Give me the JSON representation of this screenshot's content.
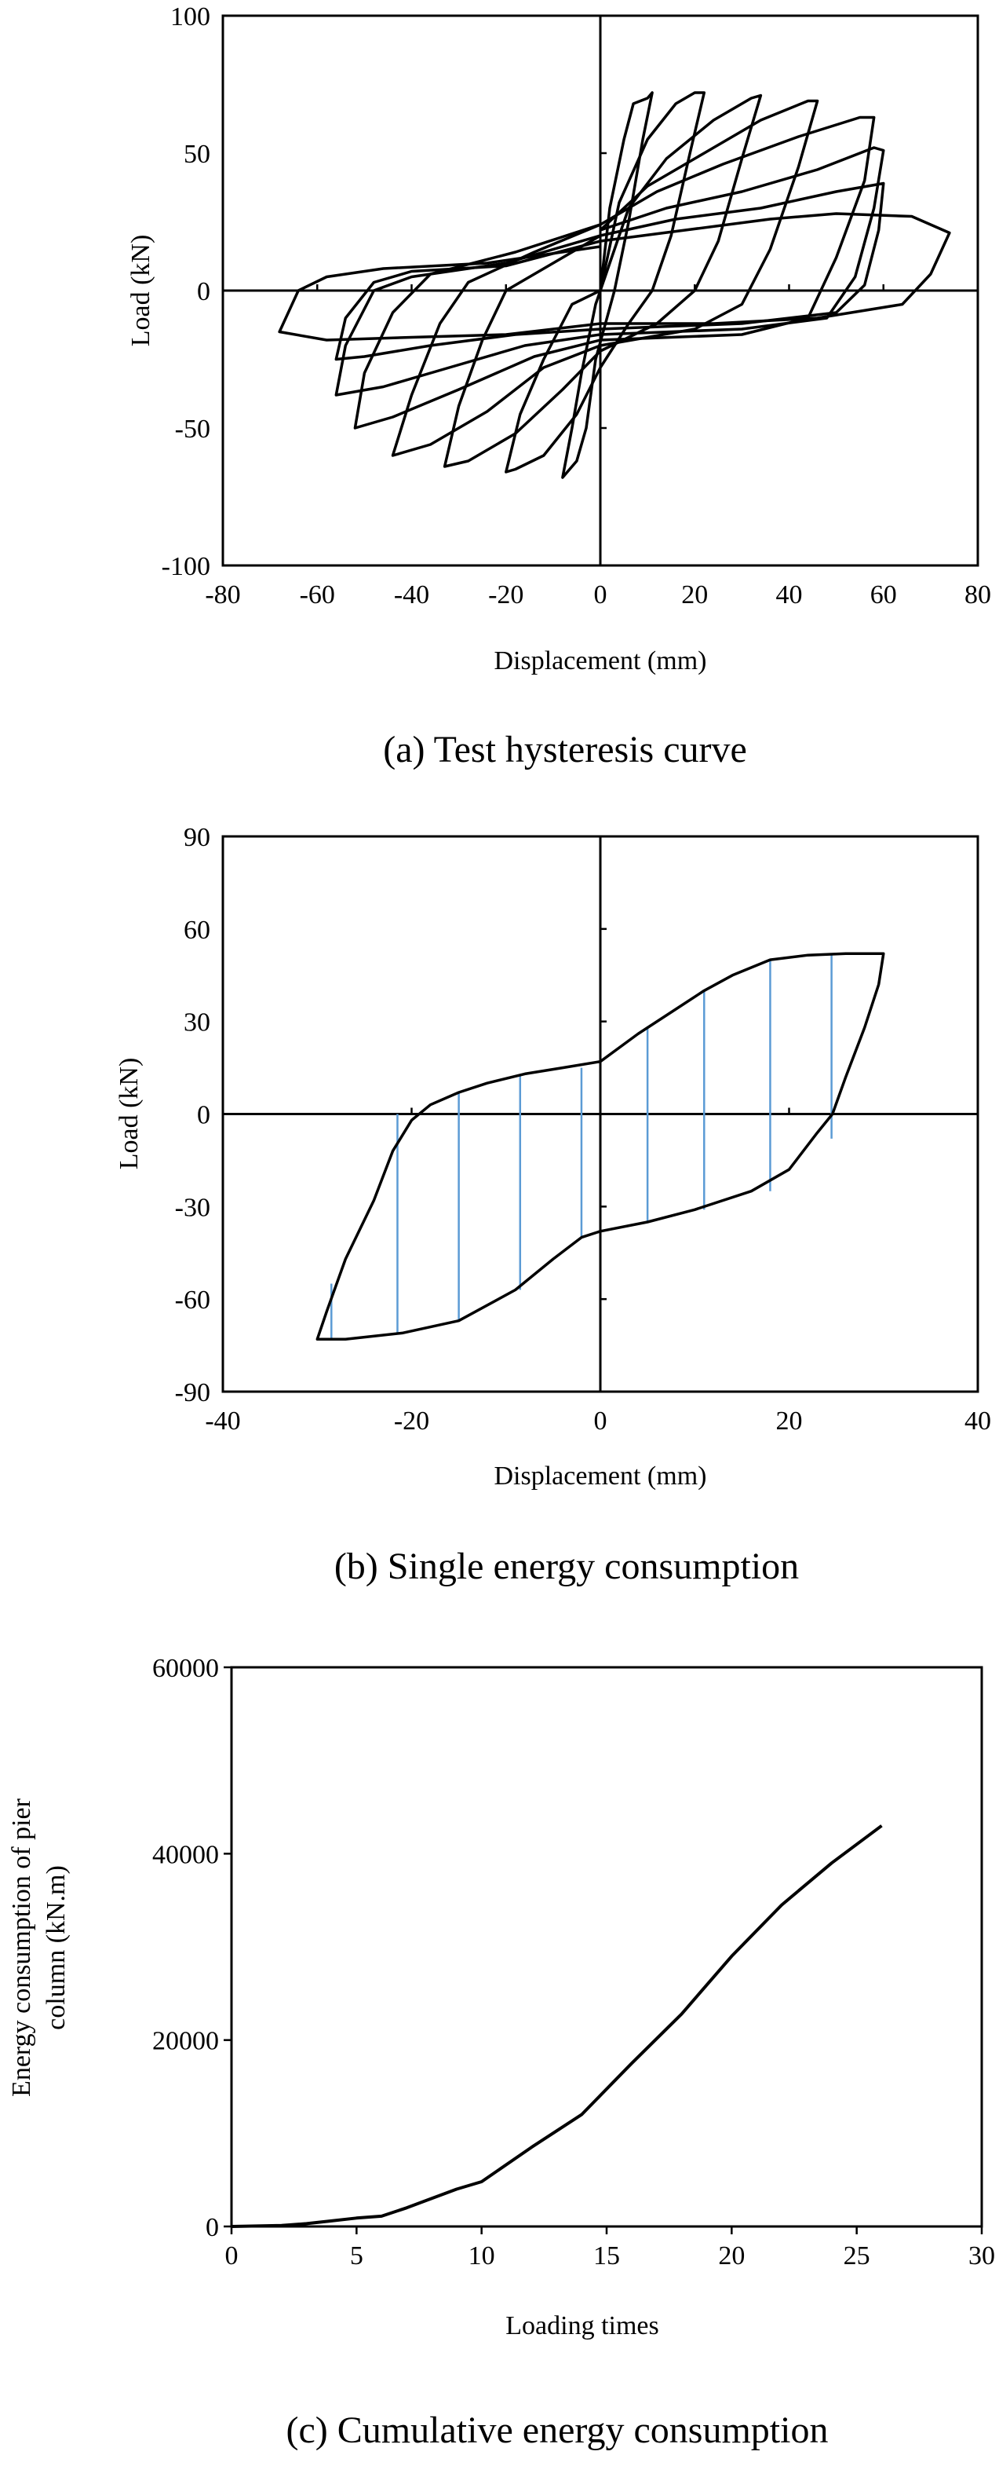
{
  "chart_data": [
    {
      "id": "a",
      "type": "line",
      "caption": "(a) Test hysteresis curve",
      "xlabel": "Displacement (mm)",
      "ylabel": "Load (kN)",
      "xlim": [
        -80,
        80
      ],
      "ylim": [
        -100,
        100
      ],
      "xticks": [
        -80,
        -60,
        -40,
        -20,
        0,
        20,
        40,
        60,
        80
      ],
      "yticks": [
        -100,
        -50,
        0,
        50,
        100
      ],
      "x_tick_labels": [
        "-80",
        "-60",
        "-40",
        "-20",
        "0",
        "20",
        "40",
        "60",
        "80"
      ],
      "y_tick_labels": [
        "-100",
        "-50",
        "0",
        "50",
        "100"
      ],
      "series": [
        {
          "name": "loop-1",
          "points": [
            [
              0,
              0
            ],
            [
              2,
              30
            ],
            [
              5,
              55
            ],
            [
              7,
              68
            ],
            [
              10,
              70
            ],
            [
              11,
              72
            ],
            [
              9,
              55
            ],
            [
              6,
              25
            ],
            [
              3,
              0
            ],
            [
              -1,
              -25
            ],
            [
              -3,
              -50
            ],
            [
              -5,
              -62
            ],
            [
              -7,
              -66
            ],
            [
              -8,
              -68
            ],
            [
              -6,
              -50
            ],
            [
              -4,
              -30
            ],
            [
              -1,
              -5
            ],
            [
              0,
              0
            ]
          ]
        },
        {
          "name": "loop-2",
          "points": [
            [
              0,
              0
            ],
            [
              4,
              32
            ],
            [
              10,
              55
            ],
            [
              16,
              68
            ],
            [
              20,
              72
            ],
            [
              22,
              72
            ],
            [
              19,
              50
            ],
            [
              15,
              20
            ],
            [
              11,
              0
            ],
            [
              6,
              -12
            ],
            [
              0,
              -28
            ],
            [
              -5,
              -45
            ],
            [
              -12,
              -60
            ],
            [
              -18,
              -65
            ],
            [
              -20,
              -66
            ],
            [
              -17,
              -45
            ],
            [
              -12,
              -25
            ],
            [
              -6,
              -5
            ],
            [
              0,
              0
            ]
          ]
        },
        {
          "name": "loop-3",
          "points": [
            [
              0,
              0
            ],
            [
              6,
              30
            ],
            [
              14,
              48
            ],
            [
              24,
              62
            ],
            [
              32,
              70
            ],
            [
              34,
              71
            ],
            [
              30,
              48
            ],
            [
              25,
              18
            ],
            [
              20,
              0
            ],
            [
              12,
              -12
            ],
            [
              0,
              -22
            ],
            [
              -8,
              -36
            ],
            [
              -18,
              -52
            ],
            [
              -28,
              -62
            ],
            [
              -33,
              -64
            ],
            [
              -30,
              -42
            ],
            [
              -25,
              -18
            ],
            [
              -20,
              0
            ],
            [
              -10,
              10
            ],
            [
              0,
              20
            ]
          ]
        },
        {
          "name": "loop-4",
          "points": [
            [
              0,
              22
            ],
            [
              10,
              38
            ],
            [
              22,
              50
            ],
            [
              34,
              62
            ],
            [
              44,
              69
            ],
            [
              46,
              69
            ],
            [
              42,
              45
            ],
            [
              36,
              15
            ],
            [
              30,
              -5
            ],
            [
              20,
              -14
            ],
            [
              0,
              -20
            ],
            [
              -12,
              -28
            ],
            [
              -24,
              -44
            ],
            [
              -36,
              -56
            ],
            [
              -44,
              -60
            ],
            [
              -40,
              -38
            ],
            [
              -34,
              -12
            ],
            [
              -28,
              3
            ],
            [
              -14,
              14
            ],
            [
              0,
              24
            ]
          ]
        },
        {
          "name": "loop-5",
          "points": [
            [
              0,
              24
            ],
            [
              12,
              36
            ],
            [
              26,
              46
            ],
            [
              42,
              56
            ],
            [
              55,
              63
            ],
            [
              58,
              63
            ],
            [
              56,
              40
            ],
            [
              50,
              12
            ],
            [
              44,
              -10
            ],
            [
              30,
              -16
            ],
            [
              0,
              -18
            ],
            [
              -14,
              -24
            ],
            [
              -30,
              -36
            ],
            [
              -44,
              -46
            ],
            [
              -52,
              -50
            ],
            [
              -50,
              -30
            ],
            [
              -44,
              -8
            ],
            [
              -36,
              6
            ],
            [
              -18,
              14
            ],
            [
              0,
              24
            ]
          ]
        },
        {
          "name": "loop-6",
          "points": [
            [
              0,
              22
            ],
            [
              14,
              30
            ],
            [
              30,
              36
            ],
            [
              46,
              44
            ],
            [
              58,
              52
            ],
            [
              60,
              51
            ],
            [
              58,
              30
            ],
            [
              54,
              5
            ],
            [
              48,
              -10
            ],
            [
              30,
              -14
            ],
            [
              0,
              -16
            ],
            [
              -16,
              -20
            ],
            [
              -32,
              -28
            ],
            [
              -46,
              -35
            ],
            [
              -56,
              -38
            ],
            [
              -54,
              -20
            ],
            [
              -48,
              0
            ],
            [
              -40,
              5
            ],
            [
              -20,
              10
            ],
            [
              0,
              20
            ]
          ]
        },
        {
          "name": "loop-7",
          "points": [
            [
              0,
              20
            ],
            [
              16,
              26
            ],
            [
              34,
              30
            ],
            [
              50,
              36
            ],
            [
              60,
              39
            ],
            [
              59,
              22
            ],
            [
              56,
              2
            ],
            [
              50,
              -8
            ],
            [
              30,
              -12
            ],
            [
              0,
              -14
            ],
            [
              -18,
              -16
            ],
            [
              -36,
              -20
            ],
            [
              -50,
              -24
            ],
            [
              -56,
              -25
            ],
            [
              -54,
              -10
            ],
            [
              -48,
              3
            ],
            [
              -40,
              7
            ],
            [
              -20,
              9
            ],
            [
              0,
              18
            ]
          ]
        },
        {
          "name": "loop-8",
          "points": [
            [
              0,
              18
            ],
            [
              18,
              22
            ],
            [
              36,
              26
            ],
            [
              50,
              28
            ],
            [
              66,
              27
            ],
            [
              74,
              21
            ],
            [
              70,
              6
            ],
            [
              64,
              -5
            ],
            [
              46,
              -10
            ],
            [
              24,
              -12
            ],
            [
              0,
              -12
            ],
            [
              -20,
              -16
            ],
            [
              -40,
              -17
            ],
            [
              -58,
              -18
            ],
            [
              -68,
              -15
            ],
            [
              -64,
              0
            ],
            [
              -58,
              5
            ],
            [
              -46,
              8
            ],
            [
              -24,
              10
            ],
            [
              0,
              16
            ]
          ]
        }
      ]
    },
    {
      "id": "b",
      "type": "line",
      "caption": "(b) Single energy consumption",
      "xlabel": "Displacement (mm)",
      "ylabel": "Load (kN)",
      "xlim": [
        -40,
        40
      ],
      "ylim": [
        -90,
        90
      ],
      "xticks": [
        -40,
        -20,
        0,
        20,
        40
      ],
      "yticks": [
        -90,
        -60,
        -30,
        0,
        30,
        60,
        90
      ],
      "x_tick_labels": [
        "-40",
        "-20",
        "0",
        "20",
        "40"
      ],
      "y_tick_labels": [
        "-90",
        "-60",
        "-30",
        "0",
        "30",
        "60",
        "90"
      ],
      "series": [
        {
          "name": "loop",
          "points": [
            [
              0,
              17
            ],
            [
              4,
              26
            ],
            [
              8,
              34
            ],
            [
              11,
              40
            ],
            [
              14,
              45
            ],
            [
              18,
              50
            ],
            [
              22,
              51.5
            ],
            [
              26,
              52
            ],
            [
              30,
              52
            ],
            [
              29.5,
              42
            ],
            [
              28,
              28
            ],
            [
              26,
              12
            ],
            [
              24.6,
              0
            ],
            [
              23,
              -6
            ],
            [
              20,
              -18
            ],
            [
              16,
              -25
            ],
            [
              10,
              -31
            ],
            [
              5,
              -35
            ],
            [
              0,
              -38
            ],
            [
              -2,
              -40
            ],
            [
              -5,
              -47
            ],
            [
              -9,
              -57
            ],
            [
              -15,
              -67
            ],
            [
              -21,
              -71
            ],
            [
              -27,
              -73
            ],
            [
              -30,
              -73
            ],
            [
              -29,
              -64
            ],
            [
              -27,
              -47
            ],
            [
              -24,
              -28
            ],
            [
              -22,
              -12
            ],
            [
              -20,
              -2
            ],
            [
              -18,
              3
            ],
            [
              -15,
              7
            ],
            [
              -12,
              10
            ],
            [
              -8,
              13
            ],
            [
              -4,
              15
            ],
            [
              0,
              17
            ]
          ]
        }
      ],
      "fill_lines": [
        {
          "x": -28.5,
          "y_low": -73,
          "y_high": -55
        },
        {
          "x": -21.5,
          "y_low": -71,
          "y_high": 0
        },
        {
          "x": -15,
          "y_low": -67,
          "y_high": 7
        },
        {
          "x": -8.5,
          "y_low": -57,
          "y_high": 13
        },
        {
          "x": -2,
          "y_low": -40,
          "y_high": 15
        },
        {
          "x": 5,
          "y_low": -35,
          "y_high": 28
        },
        {
          "x": 11,
          "y_low": -31,
          "y_high": 40
        },
        {
          "x": 18,
          "y_low": -25,
          "y_high": 50
        },
        {
          "x": 24.5,
          "y_low": -8,
          "y_high": 52
        }
      ]
    },
    {
      "id": "c",
      "type": "line",
      "caption": "(c) Cumulative energy consumption",
      "xlabel": "Loading times",
      "ylabel": "Energy consumption of pier column (kN.m)",
      "ylabel_lines": [
        "Energy consumption of pier",
        "column (kN.m)"
      ],
      "xlim": [
        0,
        30
      ],
      "ylim": [
        0,
        60000
      ],
      "xticks": [
        0,
        5,
        10,
        15,
        20,
        25,
        30
      ],
      "yticks": [
        0,
        20000,
        40000,
        60000
      ],
      "x_tick_labels": [
        "0",
        "5",
        "10",
        "15",
        "20",
        "25",
        "30"
      ],
      "y_tick_labels": [
        "0",
        "20000",
        "40000",
        "60000"
      ],
      "series": [
        {
          "name": "cumulative",
          "points": [
            [
              0,
              0
            ],
            [
              2,
              100
            ],
            [
              3,
              300
            ],
            [
              4,
              600
            ],
            [
              5,
              900
            ],
            [
              6,
              1100
            ],
            [
              7,
              2000
            ],
            [
              8,
              3000
            ],
            [
              9,
              4000
            ],
            [
              10,
              4800
            ],
            [
              12,
              8500
            ],
            [
              14,
              12000
            ],
            [
              16,
              17500
            ],
            [
              18,
              22800
            ],
            [
              20,
              29000
            ],
            [
              22,
              34500
            ],
            [
              24,
              39000
            ],
            [
              26,
              43000
            ]
          ]
        }
      ]
    }
  ]
}
